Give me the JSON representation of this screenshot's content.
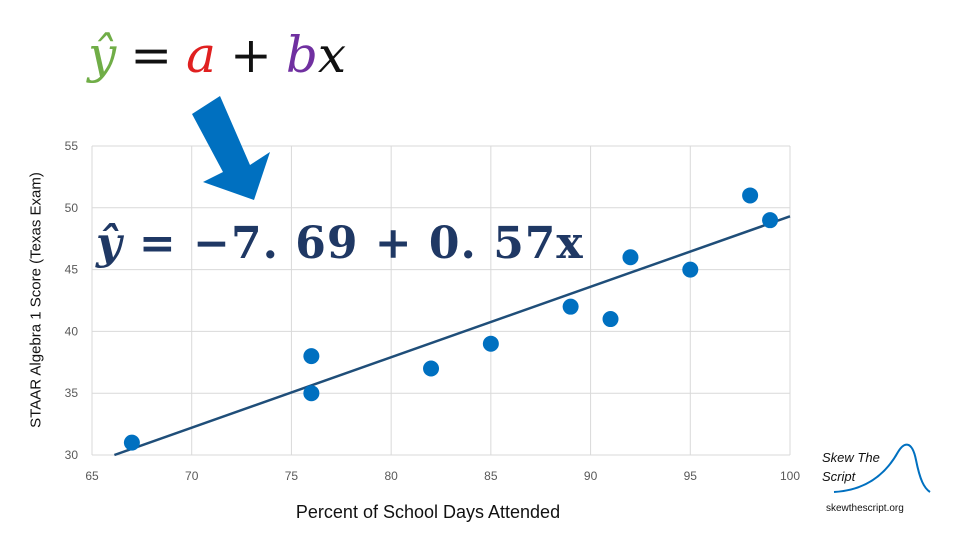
{
  "formula_generic": {
    "yhat": "ŷ",
    "eq": "=",
    "a": "a",
    "plus": "+",
    "b": "b",
    "x": "x"
  },
  "regression_equation": {
    "yhat": "ŷ",
    "rest": " = −7. 69 + 0. 57x"
  },
  "branding": {
    "line1": "Skew The",
    "line2": "Script",
    "url": "skewthescript.org"
  },
  "colors": {
    "yhat": "#70ad47",
    "a": "#e02020",
    "b": "#7030a0",
    "points": "#0070c0",
    "line": "#1f4e79",
    "arrow": "#0070c0"
  },
  "chart_data": {
    "type": "scatter",
    "xlabel": "Percent of School Days Attended",
    "ylabel": "STAAR Algebra 1 Score (Texas Exam)",
    "xlim": [
      65,
      100
    ],
    "ylim": [
      30,
      55
    ],
    "xticks": [
      65,
      70,
      75,
      80,
      85,
      90,
      95,
      100
    ],
    "yticks": [
      30,
      35,
      40,
      45,
      50,
      55
    ],
    "grid": true,
    "points": [
      {
        "x": 67,
        "y": 31
      },
      {
        "x": 76,
        "y": 38
      },
      {
        "x": 76,
        "y": 35
      },
      {
        "x": 82,
        "y": 37
      },
      {
        "x": 85,
        "y": 39
      },
      {
        "x": 89,
        "y": 42
      },
      {
        "x": 91,
        "y": 41
      },
      {
        "x": 92,
        "y": 46
      },
      {
        "x": 95,
        "y": 45
      },
      {
        "x": 98,
        "y": 51
      },
      {
        "x": 99,
        "y": 49
      }
    ],
    "trendline": {
      "intercept": -7.69,
      "slope": 0.57
    }
  }
}
